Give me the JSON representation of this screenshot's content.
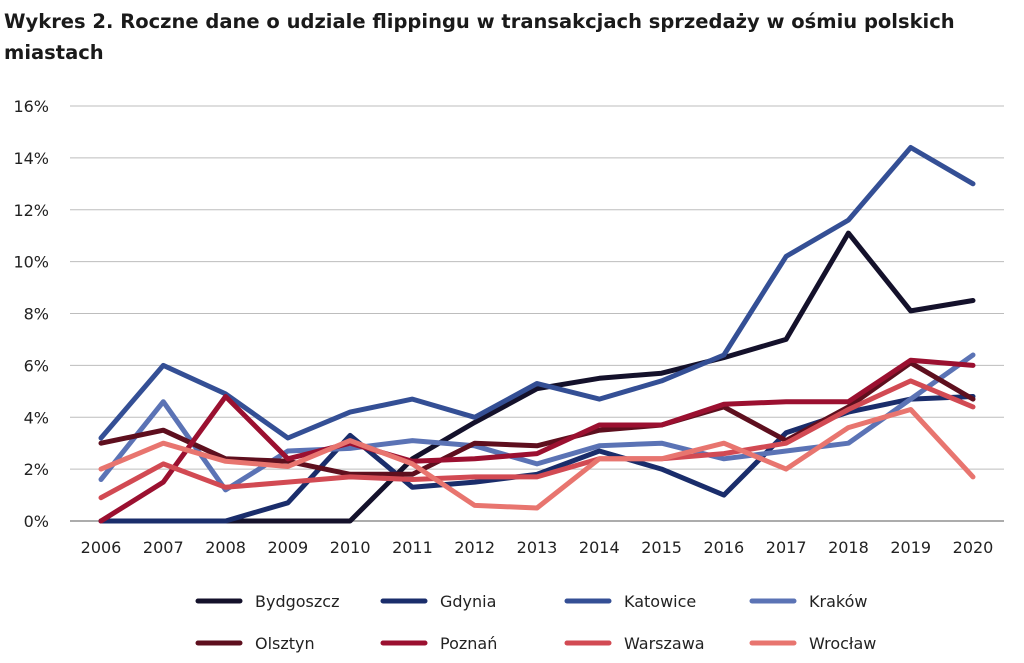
{
  "chart_data": {
    "type": "line",
    "title": "Wykres 2. Roczne dane o udziale flippingu w transakcjach sprzedaży w ośmiu polskich miastach",
    "xlabel": "",
    "ylabel": "",
    "x": [
      "2006",
      "2007",
      "2008",
      "2009",
      "2010",
      "2011",
      "2012",
      "2013",
      "2014",
      "2015",
      "2016",
      "2017",
      "2018",
      "2019",
      "2020"
    ],
    "ylim": [
      0,
      16
    ],
    "yticks": [
      0,
      2,
      4,
      6,
      8,
      10,
      12,
      14,
      16
    ],
    "ytick_labels": [
      "0%",
      "2%",
      "4%",
      "6%",
      "8%",
      "10%",
      "12%",
      "14%",
      "16%"
    ],
    "grid": "horizontal",
    "legend_position": "bottom",
    "series": [
      {
        "name": "Bydgoszcz",
        "color": "#14112b",
        "values": [
          0,
          0,
          0,
          0,
          0,
          2.4,
          3.8,
          5.1,
          5.5,
          5.7,
          6.3,
          7.0,
          11.1,
          8.1,
          8.5
        ]
      },
      {
        "name": "Gdynia",
        "color": "#1a2d6b",
        "values": [
          0,
          0,
          0,
          0.7,
          3.3,
          1.3,
          1.5,
          1.8,
          2.7,
          2.0,
          1.0,
          3.4,
          4.2,
          4.7,
          4.8
        ]
      },
      {
        "name": "Katowice",
        "color": "#344f95",
        "values": [
          3.2,
          6.0,
          4.9,
          3.2,
          4.2,
          4.7,
          4.0,
          5.3,
          4.7,
          5.4,
          6.4,
          10.2,
          11.6,
          14.4,
          13.0
        ]
      },
      {
        "name": "Kraków",
        "color": "#5b73b5",
        "values": [
          1.6,
          4.6,
          1.2,
          2.7,
          2.8,
          3.1,
          2.9,
          2.2,
          2.9,
          3.0,
          2.4,
          2.7,
          3.0,
          4.7,
          6.4
        ]
      },
      {
        "name": "Olsztyn",
        "color": "#5e0f1e",
        "values": [
          3.0,
          3.5,
          2.4,
          2.3,
          1.8,
          1.8,
          3.0,
          2.9,
          3.5,
          3.7,
          4.4,
          3.1,
          4.4,
          6.1,
          4.7
        ]
      },
      {
        "name": "Poznań",
        "color": "#9b1030",
        "values": [
          0,
          1.5,
          4.8,
          2.4,
          3.0,
          2.3,
          2.4,
          2.6,
          3.7,
          3.7,
          4.5,
          4.6,
          4.6,
          6.2,
          6.0
        ]
      },
      {
        "name": "Warszawa",
        "color": "#d24a53",
        "values": [
          0.9,
          2.2,
          1.3,
          1.5,
          1.7,
          1.6,
          1.7,
          1.7,
          2.4,
          2.4,
          2.6,
          3.0,
          4.3,
          5.4,
          4.4
        ]
      },
      {
        "name": "Wrocław",
        "color": "#e8756f",
        "values": [
          2.0,
          3.0,
          2.3,
          2.1,
          3.1,
          2.2,
          0.6,
          0.5,
          2.4,
          2.4,
          3.0,
          2.0,
          3.6,
          4.3,
          1.7
        ]
      }
    ]
  }
}
